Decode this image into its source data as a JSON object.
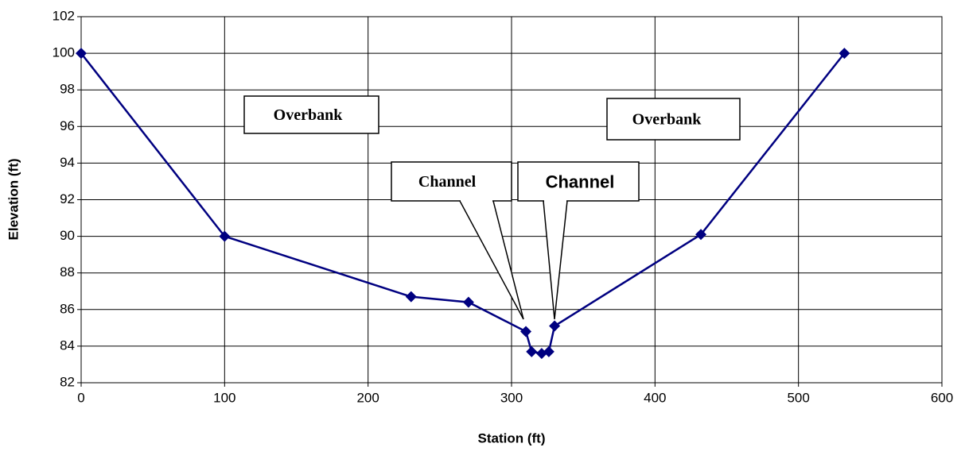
{
  "chart_data": {
    "type": "line",
    "x_label": "Station (ft)",
    "y_label": "Elevation (ft)",
    "xlim": [
      0,
      600
    ],
    "xticks": [
      0,
      100,
      200,
      300,
      400,
      500,
      600
    ],
    "ylim": [
      82,
      102
    ],
    "yticks": [
      82,
      84,
      86,
      88,
      90,
      92,
      94,
      96,
      98,
      100,
      102
    ],
    "grid": true,
    "series": [
      {
        "color": "#000080",
        "x": [
          0,
          100,
          230,
          270,
          310,
          314,
          321,
          326,
          330,
          432,
          532
        ],
        "values": [
          100,
          90,
          86.7,
          86.4,
          84.8,
          83.7,
          83.6,
          83.7,
          85.1,
          90.1,
          100
        ]
      }
    ],
    "annotations": [
      {
        "text": "Overbank"
      },
      {
        "text": "Overbank"
      },
      {
        "text": "Channel"
      },
      {
        "text": "Channel"
      }
    ]
  }
}
